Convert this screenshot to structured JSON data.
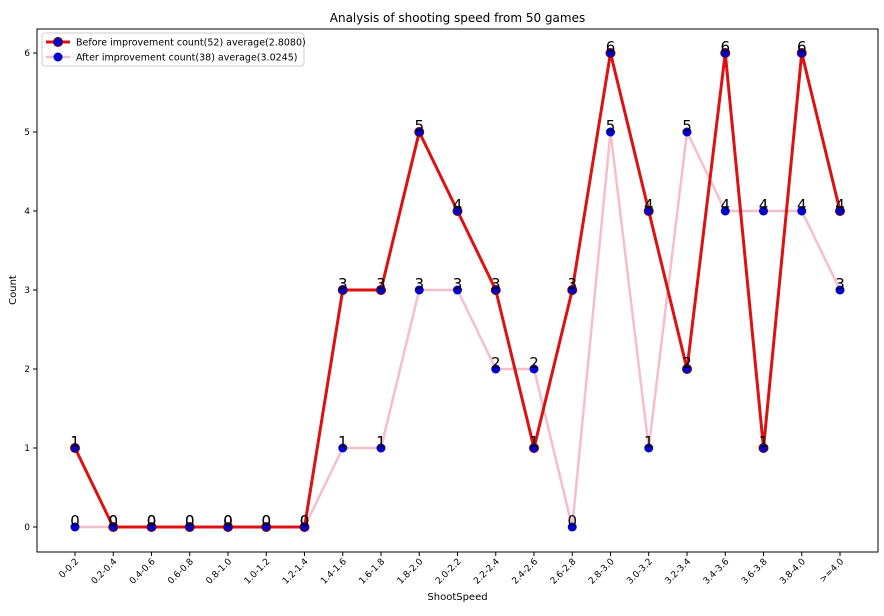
{
  "chart_data": {
    "type": "line",
    "title": "Analysis of shooting speed from 50 games",
    "xlabel": "ShootSpeed",
    "ylabel": "Count",
    "ylim": [
      0,
      6
    ],
    "yticks": [
      "0",
      "1",
      "2",
      "3",
      "4",
      "5",
      "6"
    ],
    "categories": [
      "0-0.2",
      "0.2-0.4",
      "0.4-0.6",
      "0.6-0.8",
      "0.8-1.0",
      "1.0-1.2",
      "1.2-1.4",
      "1.4-1.6",
      "1.6-1.8",
      "1.8-2.0",
      "2.0-2.2",
      "2.2-2.4",
      "2.4-2.6",
      "2.6-2.8",
      "2.8-3.0",
      "3.0-3.2",
      "3.2-3.4",
      "3.4-3.6",
      "3.6-3.8",
      "3.8-4.0",
      ">=4.0"
    ],
    "series": [
      {
        "name": "Before improvement count(52) average(2.8080)",
        "color": "#dd1111",
        "values": [
          1,
          0,
          0,
          0,
          0,
          0,
          0,
          3,
          3,
          5,
          4,
          3,
          1,
          3,
          6,
          4,
          2,
          6,
          1,
          6,
          4
        ]
      },
      {
        "name": "After improvement count(38) average(3.0245)",
        "color": "#f5bfca",
        "values": [
          0,
          0,
          0,
          0,
          0,
          0,
          0,
          1,
          1,
          3,
          3,
          2,
          2,
          0,
          5,
          1,
          5,
          4,
          4,
          4,
          3
        ]
      }
    ],
    "marker_color": "#0000cc",
    "grid": false,
    "legend": "top-left"
  }
}
